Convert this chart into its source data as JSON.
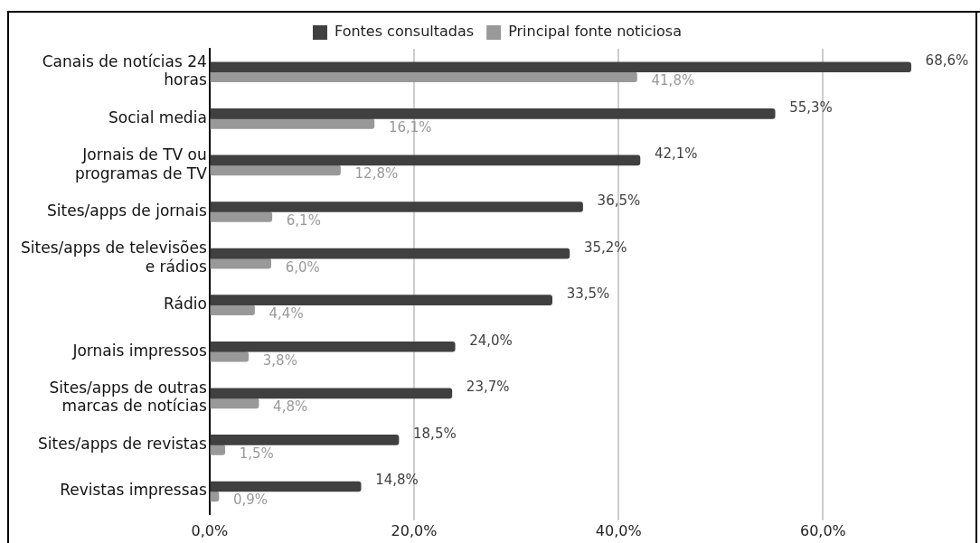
{
  "chart_data": {
    "type": "bar",
    "orientation": "horizontal",
    "legend": "top",
    "grid": "x",
    "categories": [
      "Canais de notícias 24 horas",
      "Social media",
      "Jornais de TV ou programas de TV",
      "Sites/apps de jornais",
      "Sites/apps de televisões e rádios",
      "Rádio",
      "Jornais impressos",
      "Sites/apps de outras marcas de notícias",
      "Sites/apps de revistas",
      "Revistas impressas"
    ],
    "xlim": [
      0,
      75
    ],
    "xticks": [
      {
        "value": 0,
        "label": "0,0%"
      },
      {
        "value": 20,
        "label": "20,0%"
      },
      {
        "value": 40,
        "label": "40,0%"
      },
      {
        "value": 60,
        "label": "60,0%"
      }
    ],
    "series": [
      {
        "name": "Fontes consultadas",
        "color": "#404040",
        "values": [
          68.6,
          55.3,
          42.1,
          36.5,
          35.2,
          33.5,
          24.0,
          23.7,
          18.5,
          14.8
        ],
        "value_labels": [
          "68,6%",
          "55,3%",
          "42,1%",
          "36,5%",
          "35,2%",
          "33,5%",
          "24,0%",
          "23,7%",
          "18,5%",
          "14,8%"
        ]
      },
      {
        "name": "Principal fonte noticiosa",
        "color": "#999999",
        "values": [
          41.8,
          16.1,
          12.8,
          6.1,
          6.0,
          4.4,
          3.8,
          4.8,
          1.5,
          0.9
        ],
        "value_labels": [
          "41,8%",
          "16,1%",
          "12,8%",
          "6,1%",
          "6,0%",
          "4,4%",
          "3,8%",
          "4,8%",
          "1,5%",
          "0,9%"
        ]
      }
    ]
  }
}
